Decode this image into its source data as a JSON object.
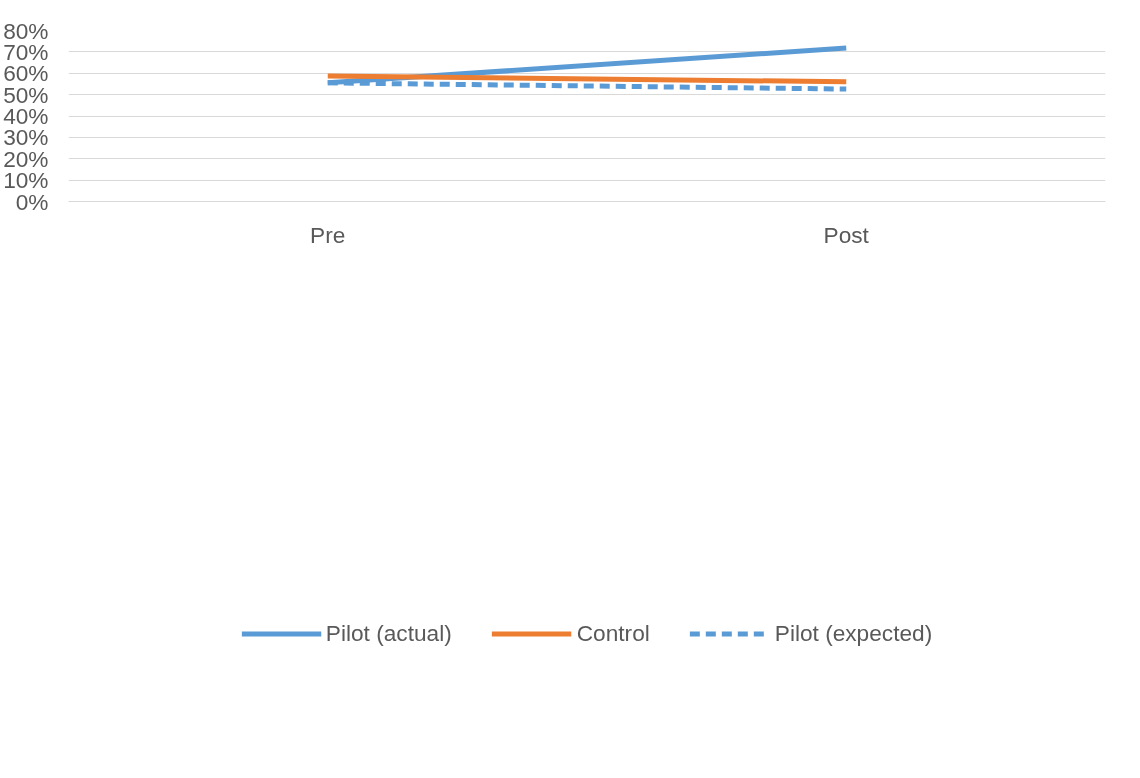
{
  "chart_data": {
    "type": "line",
    "categories": [
      "Pre",
      "Post"
    ],
    "series": [
      {
        "name": "Pilot (actual)",
        "color": "#5b9bd5",
        "values": [
          55.5,
          71.8
        ],
        "line_style": "solid"
      },
      {
        "name": "Control",
        "color": "#ed7d31",
        "values": [
          58.7,
          56.0
        ],
        "line_style": "solid"
      },
      {
        "name": "Pilot (expected)",
        "color": "#5b9bd5",
        "values": [
          55.5,
          52.6
        ],
        "line_style": "dashed"
      }
    ],
    "ylim": [
      0,
      80
    ],
    "yticks": [
      {
        "value": 0,
        "label": "0%"
      },
      {
        "value": 10,
        "label": "10%"
      },
      {
        "value": 20,
        "label": "20%"
      },
      {
        "value": 30,
        "label": "30%"
      },
      {
        "value": 40,
        "label": "40%"
      },
      {
        "value": 50,
        "label": "50%"
      },
      {
        "value": 60,
        "label": "60%"
      },
      {
        "value": 70,
        "label": "70%"
      },
      {
        "value": 80,
        "label": "80%"
      }
    ],
    "grid": "y",
    "legend": "bottom",
    "marker": "none"
  }
}
